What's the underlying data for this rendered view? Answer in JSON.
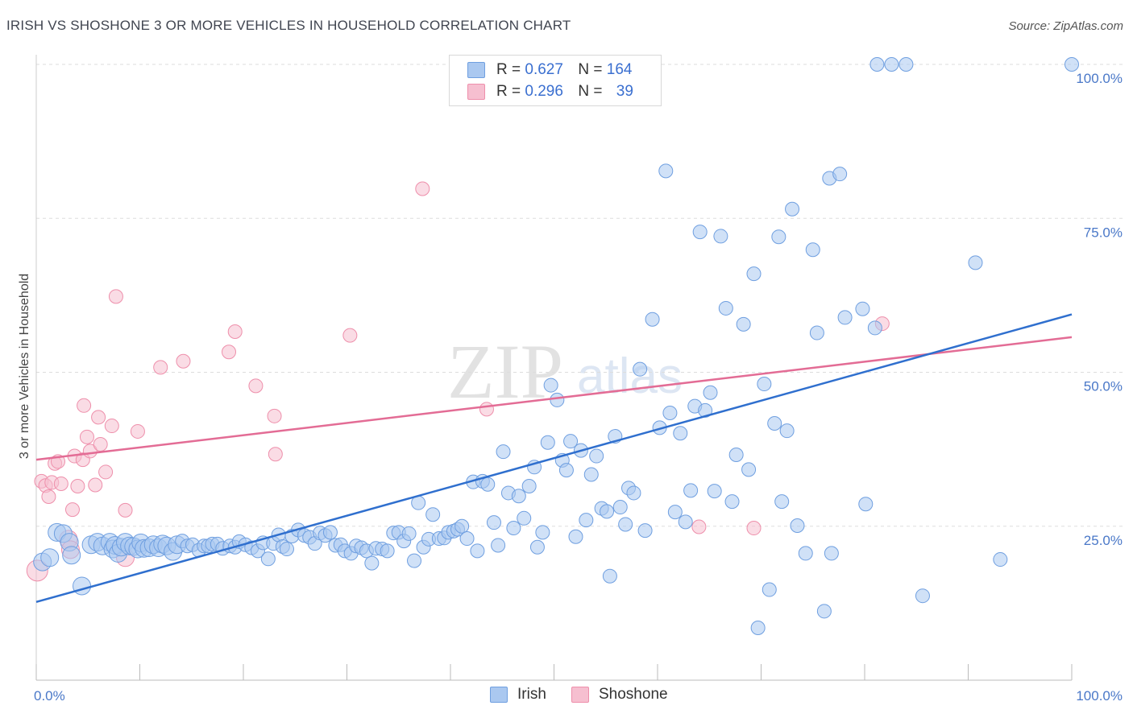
{
  "title": "IRISH VS SHOSHONE 3 OR MORE VEHICLES IN HOUSEHOLD CORRELATION CHART",
  "source": "Source: ZipAtlas.com",
  "watermark": {
    "zip": "ZIP",
    "atlas": "atlas"
  },
  "legend": {
    "r_label": "R =",
    "n_label": "N =",
    "rows": [
      {
        "name": "Irish",
        "r": "0.627",
        "n": "164"
      },
      {
        "name": "Shoshone",
        "r": "0.296",
        "n": "39"
      }
    ]
  },
  "colors": {
    "irish_fill": "#aac8f0",
    "irish_stroke": "#6f9fe0",
    "irish_line": "#2f6fce",
    "shoshone_fill": "#f6bfd0",
    "shoshone_stroke": "#ee8fab",
    "shoshone_line": "#e36c95",
    "tick_text": "#4a78c8",
    "grid": "#dddddd"
  },
  "chart_data": {
    "type": "scatter",
    "title": "IRISH VS SHOSHONE 3 OR MORE VEHICLES IN HOUSEHOLD CORRELATION CHART",
    "xlabel": "",
    "ylabel": "3 or more Vehicles in Household",
    "xlim": [
      0,
      100
    ],
    "ylim": [
      0,
      100
    ],
    "x_tick_labels": [
      "0.0%",
      "100.0%"
    ],
    "y_tick_values": [
      25,
      50,
      75,
      100
    ],
    "y_tick_labels": [
      "25.0%",
      "50.0%",
      "75.0%",
      "100.0%"
    ],
    "grid": "horizontal dashed",
    "legend_position": "top-center",
    "series": [
      {
        "name": "Irish",
        "r": 0.627,
        "n": 164,
        "trend": {
          "x": [
            0,
            100
          ],
          "y": [
            12.7,
            59.4
          ]
        },
        "points": [
          [
            0.6,
            19.2
          ],
          [
            1.3,
            19.9
          ],
          [
            2.0,
            24.0
          ],
          [
            2.6,
            23.8
          ],
          [
            3.2,
            22.4
          ],
          [
            3.4,
            20.3
          ],
          [
            4.4,
            15.3
          ],
          [
            5.3,
            22.0
          ],
          [
            5.9,
            22.4
          ],
          [
            6.4,
            21.8
          ],
          [
            7.1,
            22.4
          ],
          [
            7.4,
            21.3
          ],
          [
            7.6,
            21.9
          ],
          [
            7.9,
            20.6
          ],
          [
            8.2,
            21.6
          ],
          [
            8.6,
            22.4
          ],
          [
            9.0,
            21.8
          ],
          [
            9.4,
            21.7
          ],
          [
            9.8,
            21.3
          ],
          [
            10.1,
            22.3
          ],
          [
            10.4,
            21.4
          ],
          [
            10.9,
            21.5
          ],
          [
            11.3,
            22.0
          ],
          [
            11.8,
            21.5
          ],
          [
            12.2,
            22.1
          ],
          [
            12.6,
            21.8
          ],
          [
            13.2,
            20.9
          ],
          [
            13.6,
            22.0
          ],
          [
            14.1,
            22.6
          ],
          [
            14.6,
            21.8
          ],
          [
            15.1,
            22.0
          ],
          [
            15.7,
            21.1
          ],
          [
            16.2,
            21.8
          ],
          [
            16.6,
            21.8
          ],
          [
            17.0,
            22.1
          ],
          [
            17.5,
            22.1
          ],
          [
            18.0,
            21.4
          ],
          [
            18.7,
            21.8
          ],
          [
            19.2,
            21.6
          ],
          [
            19.6,
            22.5
          ],
          [
            20.2,
            22.0
          ],
          [
            20.8,
            21.5
          ],
          [
            21.4,
            21.0
          ],
          [
            21.9,
            22.3
          ],
          [
            22.4,
            19.7
          ],
          [
            22.9,
            22.2
          ],
          [
            23.4,
            23.6
          ],
          [
            23.8,
            21.7
          ],
          [
            24.2,
            21.3
          ],
          [
            24.7,
            23.4
          ],
          [
            25.3,
            24.4
          ],
          [
            25.9,
            23.5
          ],
          [
            26.4,
            23.2
          ],
          [
            26.9,
            22.2
          ],
          [
            27.4,
            23.9
          ],
          [
            27.9,
            23.5
          ],
          [
            28.4,
            24.0
          ],
          [
            28.9,
            21.9
          ],
          [
            29.4,
            22.0
          ],
          [
            29.8,
            21.0
          ],
          [
            30.4,
            20.6
          ],
          [
            30.9,
            21.8
          ],
          [
            31.4,
            21.5
          ],
          [
            31.9,
            21.0
          ],
          [
            32.4,
            19.0
          ],
          [
            32.8,
            21.4
          ],
          [
            33.4,
            21.3
          ],
          [
            33.9,
            21.0
          ],
          [
            34.5,
            23.9
          ],
          [
            35.0,
            24.0
          ],
          [
            35.5,
            22.6
          ],
          [
            36.0,
            23.8
          ],
          [
            36.5,
            19.4
          ],
          [
            36.9,
            28.8
          ],
          [
            37.4,
            21.6
          ],
          [
            37.9,
            22.9
          ],
          [
            38.3,
            26.9
          ],
          [
            38.9,
            23.0
          ],
          [
            39.4,
            23.1
          ],
          [
            39.8,
            24.0
          ],
          [
            40.3,
            24.2
          ],
          [
            40.7,
            24.5
          ],
          [
            41.1,
            25.0
          ],
          [
            41.6,
            23.0
          ],
          [
            42.2,
            32.2
          ],
          [
            42.6,
            21.0
          ],
          [
            43.1,
            32.3
          ],
          [
            43.6,
            31.8
          ],
          [
            44.2,
            25.6
          ],
          [
            44.6,
            21.9
          ],
          [
            45.1,
            37.1
          ],
          [
            45.6,
            30.4
          ],
          [
            46.1,
            24.7
          ],
          [
            46.6,
            29.9
          ],
          [
            47.1,
            26.3
          ],
          [
            47.6,
            31.5
          ],
          [
            48.1,
            34.6
          ],
          [
            48.4,
            21.6
          ],
          [
            48.9,
            24.0
          ],
          [
            49.4,
            38.6
          ],
          [
            49.7,
            47.9
          ],
          [
            50.3,
            45.5
          ],
          [
            50.8,
            35.7
          ],
          [
            51.2,
            34.1
          ],
          [
            51.6,
            38.8
          ],
          [
            52.1,
            23.3
          ],
          [
            52.6,
            37.3
          ],
          [
            53.1,
            26.0
          ],
          [
            53.6,
            33.4
          ],
          [
            54.1,
            36.4
          ],
          [
            54.6,
            27.9
          ],
          [
            55.1,
            27.4
          ],
          [
            55.4,
            16.9
          ],
          [
            55.9,
            39.6
          ],
          [
            56.4,
            28.1
          ],
          [
            56.9,
            25.3
          ],
          [
            57.2,
            31.2
          ],
          [
            57.7,
            30.4
          ],
          [
            58.3,
            50.5
          ],
          [
            58.8,
            24.3
          ],
          [
            59.5,
            58.6
          ],
          [
            60.2,
            41.0
          ],
          [
            60.8,
            82.7
          ],
          [
            61.2,
            43.4
          ],
          [
            61.7,
            27.3
          ],
          [
            62.2,
            40.1
          ],
          [
            62.7,
            25.7
          ],
          [
            63.2,
            30.8
          ],
          [
            63.6,
            44.5
          ],
          [
            64.1,
            72.8
          ],
          [
            64.6,
            43.8
          ],
          [
            65.1,
            46.7
          ],
          [
            65.5,
            30.7
          ],
          [
            66.1,
            72.1
          ],
          [
            66.6,
            60.4
          ],
          [
            67.2,
            29.0
          ],
          [
            67.6,
            36.6
          ],
          [
            68.3,
            57.8
          ],
          [
            68.8,
            34.2
          ],
          [
            69.3,
            66.0
          ],
          [
            69.7,
            8.5
          ],
          [
            70.3,
            48.1
          ],
          [
            70.8,
            14.7
          ],
          [
            71.3,
            41.7
          ],
          [
            71.7,
            72.0
          ],
          [
            72.0,
            29.0
          ],
          [
            72.5,
            40.5
          ],
          [
            73.0,
            76.5
          ],
          [
            73.5,
            25.1
          ],
          [
            74.3,
            20.6
          ],
          [
            75.0,
            69.9
          ],
          [
            75.4,
            56.4
          ],
          [
            76.1,
            11.2
          ],
          [
            76.6,
            81.5
          ],
          [
            76.8,
            20.6
          ],
          [
            77.6,
            82.2
          ],
          [
            78.1,
            58.9
          ],
          [
            79.8,
            60.3
          ],
          [
            80.1,
            28.6
          ],
          [
            81.0,
            57.2
          ],
          [
            81.2,
            100.0
          ],
          [
            82.6,
            100.0
          ],
          [
            84.0,
            100.0
          ],
          [
            85.6,
            13.7
          ],
          [
            90.7,
            67.8
          ],
          [
            93.1,
            19.6
          ],
          [
            100.0,
            100.0
          ]
        ]
      },
      {
        "name": "Shoshone",
        "r": 0.296,
        "n": 39,
        "trend": {
          "x": [
            0,
            100
          ],
          "y": [
            35.8,
            55.7
          ]
        },
        "points": [
          [
            0.1,
            17.8
          ],
          [
            0.5,
            32.3
          ],
          [
            0.9,
            31.6
          ],
          [
            1.2,
            29.8
          ],
          [
            1.5,
            32.1
          ],
          [
            1.8,
            35.2
          ],
          [
            2.1,
            35.5
          ],
          [
            2.4,
            31.9
          ],
          [
            3.1,
            22.9
          ],
          [
            3.3,
            21.2
          ],
          [
            3.5,
            27.7
          ],
          [
            3.7,
            36.4
          ],
          [
            4.0,
            31.5
          ],
          [
            4.5,
            35.8
          ],
          [
            4.6,
            44.6
          ],
          [
            4.9,
            39.5
          ],
          [
            5.2,
            37.2
          ],
          [
            5.7,
            31.7
          ],
          [
            6.0,
            42.7
          ],
          [
            6.2,
            38.3
          ],
          [
            6.7,
            33.8
          ],
          [
            7.3,
            41.3
          ],
          [
            7.7,
            62.3
          ],
          [
            8.6,
            27.6
          ],
          [
            8.6,
            19.9
          ],
          [
            9.8,
            40.4
          ],
          [
            12.0,
            50.8
          ],
          [
            14.2,
            51.8
          ],
          [
            18.6,
            53.3
          ],
          [
            19.2,
            56.6
          ],
          [
            21.2,
            47.8
          ],
          [
            23.0,
            42.9
          ],
          [
            23.1,
            36.7
          ],
          [
            30.3,
            56.0
          ],
          [
            37.3,
            79.8
          ],
          [
            43.5,
            44.0
          ],
          [
            64.0,
            24.9
          ],
          [
            69.3,
            24.7
          ],
          [
            81.7,
            57.9
          ]
        ]
      }
    ]
  }
}
